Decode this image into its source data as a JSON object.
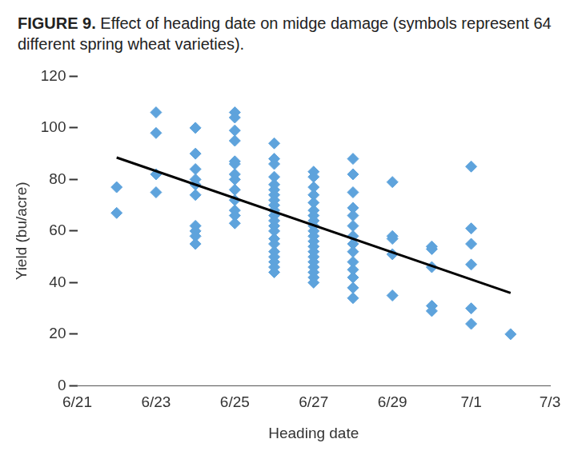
{
  "chart_data": {
    "type": "scatter",
    "title": "FIGURE 9. Effect of heading date on midge damage (symbols represent 64 different spring wheat varieties).",
    "x_label": "Heading date",
    "y_label": "Yield (bu/acre)",
    "xlim": [
      21,
      33
    ],
    "xticks": [
      {
        "value": 21,
        "label": "6/21"
      },
      {
        "value": 23,
        "label": "6/23"
      },
      {
        "value": 25,
        "label": "6/25"
      },
      {
        "value": 27,
        "label": "6/27"
      },
      {
        "value": 29,
        "label": "6/29"
      },
      {
        "value": 31,
        "label": "7/1"
      },
      {
        "value": 33,
        "label": "7/3"
      }
    ],
    "ylim": [
      0,
      120
    ],
    "yticks": [
      0,
      20,
      40,
      60,
      80,
      100,
      120
    ],
    "grid": false,
    "legend": false,
    "series": [
      {
        "type": "scatter",
        "color": "#5ea3dc",
        "marker": "diamond",
        "x": [
          22,
          22,
          23,
          23,
          23,
          23,
          24,
          24,
          24,
          24,
          24,
          24,
          24,
          24,
          24,
          24,
          25,
          25,
          25,
          25,
          25,
          25,
          25,
          25,
          25,
          25,
          25,
          25,
          25,
          26,
          26,
          26,
          26,
          26,
          26,
          26,
          26,
          26,
          26,
          26,
          26,
          26,
          26,
          26,
          26,
          26,
          26,
          26,
          26,
          26,
          27,
          27,
          27,
          27,
          27,
          27,
          27,
          27,
          27,
          27,
          27,
          27,
          27,
          27,
          27,
          27,
          27,
          27,
          27,
          27,
          28,
          28,
          28,
          28,
          28,
          28,
          28,
          28,
          28,
          28,
          28,
          28,
          28,
          28,
          29,
          29,
          29,
          29,
          29,
          30,
          30,
          30,
          30,
          30,
          31,
          31,
          31,
          31,
          31,
          31,
          32
        ],
        "values": [
          77,
          67,
          106,
          98,
          82,
          75,
          100,
          90,
          84,
          80,
          78,
          74,
          62,
          60,
          58,
          55,
          106,
          104,
          99,
          95,
          87,
          86,
          82,
          80,
          76,
          72,
          68,
          66,
          63,
          94,
          88,
          86,
          81,
          78,
          76,
          74,
          72,
          70,
          68,
          66,
          64,
          62,
          60,
          57,
          55,
          52,
          50,
          48,
          46,
          44,
          83,
          81,
          77,
          74,
          71,
          68,
          66,
          64,
          62,
          60,
          58,
          56,
          54,
          52,
          50,
          48,
          46,
          44,
          42,
          40,
          88,
          82,
          75,
          69,
          66,
          62,
          58,
          55,
          52,
          48,
          45,
          42,
          38,
          34,
          79,
          58,
          57,
          51,
          35,
          54,
          53,
          46,
          31,
          29,
          85,
          61,
          55,
          47,
          30,
          24,
          20
        ]
      },
      {
        "type": "line",
        "color": "#000000",
        "line_style": "solid",
        "x": [
          22,
          32
        ],
        "values": [
          88.5,
          36
        ]
      }
    ]
  }
}
